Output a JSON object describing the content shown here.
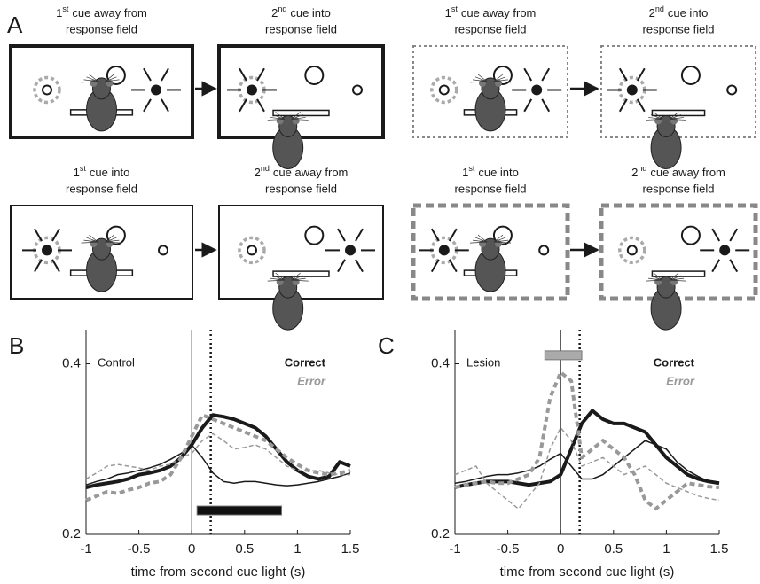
{
  "panel_a": {
    "label": "A",
    "scenes": [
      {
        "number": "1",
        "superscript": "st",
        "caption": "cue away from",
        "caption_line2": "response field"
      },
      {
        "number": "2",
        "superscript": "nd",
        "caption": "cue into",
        "caption_line2": "response field"
      },
      {
        "number": "1",
        "superscript": "st",
        "caption": "cue away from",
        "caption_line2": "response field"
      },
      {
        "number": "2",
        "superscript": "nd",
        "caption": "cue into",
        "caption_line2": "response field"
      },
      {
        "number": "1",
        "superscript": "st",
        "caption": "cue into",
        "caption_line2": "response field"
      },
      {
        "number": "2",
        "superscript": "nd",
        "caption": "cue away from",
        "caption_line2": "response field"
      },
      {
        "number": "1",
        "superscript": "st",
        "caption": "cue into",
        "caption_line2": "response field"
      },
      {
        "number": "2",
        "superscript": "nd",
        "caption": "cue away from",
        "caption_line2": "response field"
      }
    ]
  },
  "chart_data": [
    {
      "type": "line",
      "panel": "B",
      "subtitle": "Control",
      "xlabel": "time from second cue light (s)",
      "x": [
        -1,
        -0.9,
        -0.8,
        -0.7,
        -0.6,
        -0.5,
        -0.4,
        -0.3,
        -0.2,
        -0.1,
        0,
        0.1,
        0.2,
        0.3,
        0.4,
        0.5,
        0.6,
        0.7,
        0.8,
        0.9,
        1,
        1.1,
        1.2,
        1.3,
        1.4,
        1.5
      ],
      "xlim": [
        -1,
        1.5
      ],
      "xticks": [
        -1,
        -0.5,
        0,
        0.5,
        1,
        1.5
      ],
      "ylim": [
        0.2,
        0.44
      ],
      "yticks": [
        0.2,
        0.4
      ],
      "vlines": [
        {
          "x": 0,
          "style": "solid"
        },
        {
          "x": 0.18,
          "style": "dotted"
        }
      ],
      "bar": {
        "x": [
          0.05,
          0.85
        ],
        "y": 0.228,
        "color": "#111111"
      },
      "series": [
        {
          "name": "Correct",
          "color": "#1a1a1a",
          "linewidth": 4,
          "linestyle": "solid",
          "values": [
            0.255,
            0.258,
            0.26,
            0.262,
            0.265,
            0.27,
            0.272,
            0.275,
            0.28,
            0.29,
            0.305,
            0.325,
            0.34,
            0.338,
            0.335,
            0.33,
            0.325,
            0.315,
            0.3,
            0.285,
            0.275,
            0.268,
            0.265,
            0.268,
            0.285,
            0.28
          ]
        },
        {
          "color": "#1a1a1a",
          "linewidth": 1.5,
          "linestyle": "solid",
          "values": [
            0.258,
            0.262,
            0.265,
            0.27,
            0.272,
            0.275,
            0.278,
            0.282,
            0.288,
            0.295,
            0.305,
            0.29,
            0.272,
            0.262,
            0.26,
            0.262,
            0.262,
            0.26,
            0.258,
            0.257,
            0.258,
            0.26,
            0.262,
            0.265,
            0.268,
            0.272
          ]
        },
        {
          "name": "Error",
          "color": "#999999",
          "linewidth": 4,
          "linestyle": "dashed",
          "values": [
            0.24,
            0.245,
            0.25,
            0.248,
            0.252,
            0.255,
            0.26,
            0.262,
            0.27,
            0.29,
            0.315,
            0.34,
            0.335,
            0.33,
            0.325,
            0.32,
            0.315,
            0.31,
            0.3,
            0.29,
            0.282,
            0.275,
            0.272,
            0.27,
            0.272,
            0.275
          ]
        },
        {
          "color": "#999999",
          "linewidth": 1.5,
          "linestyle": "dashed",
          "values": [
            0.265,
            0.272,
            0.28,
            0.282,
            0.28,
            0.278,
            0.275,
            0.28,
            0.282,
            0.29,
            0.295,
            0.31,
            0.318,
            0.31,
            0.3,
            0.302,
            0.305,
            0.3,
            0.29,
            0.28,
            0.275,
            0.274,
            0.275,
            0.272,
            0.27,
            0.27
          ]
        }
      ]
    },
    {
      "type": "line",
      "panel": "C",
      "subtitle": "Lesion",
      "xlabel": "time from second cue light (s)",
      "x": [
        -1,
        -0.9,
        -0.8,
        -0.7,
        -0.6,
        -0.5,
        -0.4,
        -0.3,
        -0.2,
        -0.1,
        0,
        0.1,
        0.2,
        0.3,
        0.4,
        0.5,
        0.6,
        0.7,
        0.8,
        0.9,
        1,
        1.1,
        1.2,
        1.3,
        1.4,
        1.5
      ],
      "xlim": [
        -1,
        1.5
      ],
      "xticks": [
        -1,
        -0.5,
        0,
        0.5,
        1,
        1.5
      ],
      "ylim": [
        0.2,
        0.44
      ],
      "yticks": [
        0.2,
        0.4
      ],
      "vlines": [
        {
          "x": 0,
          "style": "solid"
        },
        {
          "x": 0.18,
          "style": "dotted"
        }
      ],
      "bar": {
        "x": [
          -0.15,
          0.2
        ],
        "y": 0.41,
        "color": "#aaaaaa"
      },
      "series": [
        {
          "name": "Correct",
          "color": "#1a1a1a",
          "linewidth": 4,
          "linestyle": "solid",
          "values": [
            0.255,
            0.258,
            0.26,
            0.262,
            0.262,
            0.262,
            0.26,
            0.258,
            0.26,
            0.262,
            0.27,
            0.3,
            0.33,
            0.345,
            0.335,
            0.33,
            0.33,
            0.325,
            0.32,
            0.305,
            0.29,
            0.28,
            0.27,
            0.265,
            0.262,
            0.26
          ]
        },
        {
          "color": "#1a1a1a",
          "linewidth": 1.5,
          "linestyle": "solid",
          "values": [
            0.26,
            0.262,
            0.265,
            0.268,
            0.27,
            0.27,
            0.272,
            0.275,
            0.28,
            0.288,
            0.295,
            0.28,
            0.265,
            0.265,
            0.27,
            0.28,
            0.29,
            0.3,
            0.31,
            0.305,
            0.3,
            0.285,
            0.275,
            0.268,
            0.262,
            0.26
          ]
        },
        {
          "name": "Error",
          "color": "#999999",
          "linewidth": 4,
          "linestyle": "dashed",
          "values": [
            0.255,
            0.258,
            0.26,
            0.262,
            0.26,
            0.26,
            0.265,
            0.27,
            0.29,
            0.36,
            0.39,
            0.38,
            0.29,
            0.3,
            0.31,
            0.3,
            0.29,
            0.27,
            0.24,
            0.23,
            0.24,
            0.25,
            0.26,
            0.258,
            0.256,
            0.255
          ]
        },
        {
          "color": "#999999",
          "linewidth": 1.5,
          "linestyle": "dashed",
          "values": [
            0.27,
            0.275,
            0.28,
            0.26,
            0.25,
            0.24,
            0.23,
            0.245,
            0.26,
            0.3,
            0.325,
            0.31,
            0.28,
            0.285,
            0.29,
            0.28,
            0.27,
            0.275,
            0.28,
            0.27,
            0.26,
            0.255,
            0.25,
            0.245,
            0.242,
            0.24
          ]
        }
      ]
    }
  ]
}
